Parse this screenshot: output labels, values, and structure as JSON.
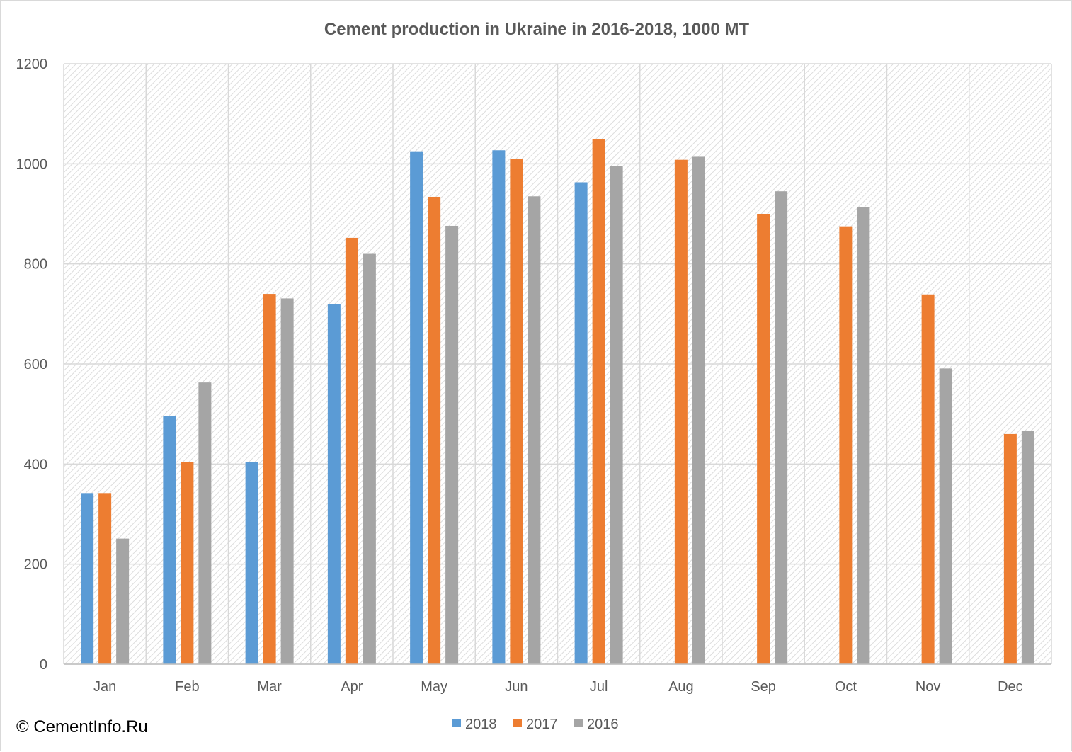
{
  "chart_data": {
    "type": "bar",
    "title": "Cement production in Ukraine in 2016-2018, 1000 MT",
    "categories": [
      "Jan",
      "Feb",
      "Mar",
      "Apr",
      "May",
      "Jun",
      "Jul",
      "Aug",
      "Sep",
      "Oct",
      "Nov",
      "Dec"
    ],
    "series": [
      {
        "name": "2018",
        "color": "#5b9bd5",
        "values": [
          342,
          496,
          404,
          720,
          1025,
          1027,
          963,
          null,
          null,
          null,
          null,
          null
        ]
      },
      {
        "name": "2017",
        "color": "#ed7d31",
        "values": [
          342,
          404,
          740,
          852,
          934,
          1010,
          1050,
          1008,
          900,
          875,
          739,
          460
        ]
      },
      {
        "name": "2016",
        "color": "#a5a5a5",
        "values": [
          251,
          563,
          731,
          820,
          876,
          935,
          996,
          1014,
          945,
          914,
          591,
          467
        ]
      }
    ],
    "ylim": [
      0,
      1200
    ],
    "yticks": [
      0,
      200,
      400,
      600,
      800,
      1000,
      1200
    ],
    "grid": true,
    "legend": "bottom"
  },
  "watermark": "© CementInfo.Ru"
}
